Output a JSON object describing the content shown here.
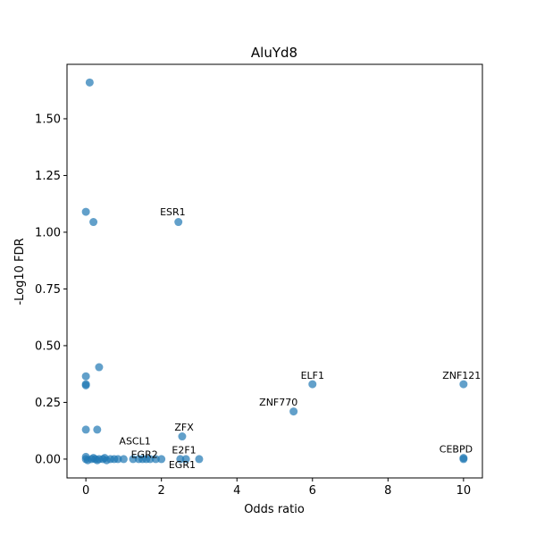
{
  "chart_data": {
    "type": "scatter",
    "title": "AluYd8",
    "xlabel": "Odds ratio",
    "ylabel": "-Log10 FDR",
    "xlim": [
      -0.5,
      10.5
    ],
    "ylim": [
      -0.083,
      1.74
    ],
    "xticks": [
      0,
      2,
      4,
      6,
      8,
      10
    ],
    "xtick_labels": [
      "0",
      "2",
      "4",
      "6",
      "8",
      "10"
    ],
    "yticks": [
      0.0,
      0.25,
      0.5,
      0.75,
      1.0,
      1.25,
      1.5
    ],
    "ytick_labels": [
      "0.00",
      "0.25",
      "0.50",
      "0.75",
      "1.00",
      "1.25",
      "1.50"
    ],
    "grid": false,
    "point_color": "#1f77b4",
    "point_alpha": 0.7,
    "points": [
      {
        "x": 0.1,
        "y": 1.66
      },
      {
        "x": 0.0,
        "y": 1.09
      },
      {
        "x": 0.2,
        "y": 1.045
      },
      {
        "x": 2.45,
        "y": 1.045
      },
      {
        "x": 0.35,
        "y": 0.405
      },
      {
        "x": 0.0,
        "y": 0.365
      },
      {
        "x": 0.0,
        "y": 0.33
      },
      {
        "x": 0.0,
        "y": 0.325
      },
      {
        "x": 6.0,
        "y": 0.33
      },
      {
        "x": 10.0,
        "y": 0.33
      },
      {
        "x": 5.5,
        "y": 0.21
      },
      {
        "x": 0.0,
        "y": 0.13
      },
      {
        "x": 0.3,
        "y": 0.13
      },
      {
        "x": 2.55,
        "y": 0.1
      },
      {
        "x": 0.0,
        "y": 0.0
      },
      {
        "x": 0.0,
        "y": 0.01
      },
      {
        "x": 0.05,
        "y": -0.005
      },
      {
        "x": 0.15,
        "y": 0.0
      },
      {
        "x": 0.2,
        "y": 0.005
      },
      {
        "x": 0.25,
        "y": 0.0
      },
      {
        "x": 0.3,
        "y": -0.005
      },
      {
        "x": 0.35,
        "y": 0.0
      },
      {
        "x": 0.45,
        "y": 0.0
      },
      {
        "x": 0.5,
        "y": 0.005
      },
      {
        "x": 0.55,
        "y": -0.005
      },
      {
        "x": 0.65,
        "y": 0.0
      },
      {
        "x": 0.75,
        "y": 0.0
      },
      {
        "x": 0.85,
        "y": 0.0
      },
      {
        "x": 1.0,
        "y": 0.0
      },
      {
        "x": 1.25,
        "y": 0.0
      },
      {
        "x": 1.4,
        "y": 0.0
      },
      {
        "x": 1.5,
        "y": 0.0
      },
      {
        "x": 1.6,
        "y": 0.0
      },
      {
        "x": 1.7,
        "y": 0.0
      },
      {
        "x": 1.85,
        "y": 0.0
      },
      {
        "x": 2.0,
        "y": 0.0
      },
      {
        "x": 2.5,
        "y": 0.0
      },
      {
        "x": 2.65,
        "y": 0.0
      },
      {
        "x": 3.0,
        "y": 0.0
      },
      {
        "x": 10.0,
        "y": 0.0
      },
      {
        "x": 10.0,
        "y": 0.005
      }
    ],
    "annotations": [
      {
        "text": "ESR1",
        "x": 2.3,
        "y": 1.075
      },
      {
        "text": "ELF1",
        "x": 6.0,
        "y": 0.355
      },
      {
        "text": "ZNF121",
        "x": 9.95,
        "y": 0.355
      },
      {
        "text": "ZNF770",
        "x": 5.1,
        "y": 0.235
      },
      {
        "text": "ZFX",
        "x": 2.6,
        "y": 0.125
      },
      {
        "text": "ASCL1",
        "x": 1.3,
        "y": 0.065
      },
      {
        "text": "EGR2",
        "x": 1.55,
        "y": 0.005
      },
      {
        "text": "E2F1",
        "x": 2.6,
        "y": 0.025
      },
      {
        "text": "EGR1",
        "x": 2.55,
        "y": -0.04
      },
      {
        "text": "CEBPD",
        "x": 9.8,
        "y": 0.03
      }
    ]
  }
}
